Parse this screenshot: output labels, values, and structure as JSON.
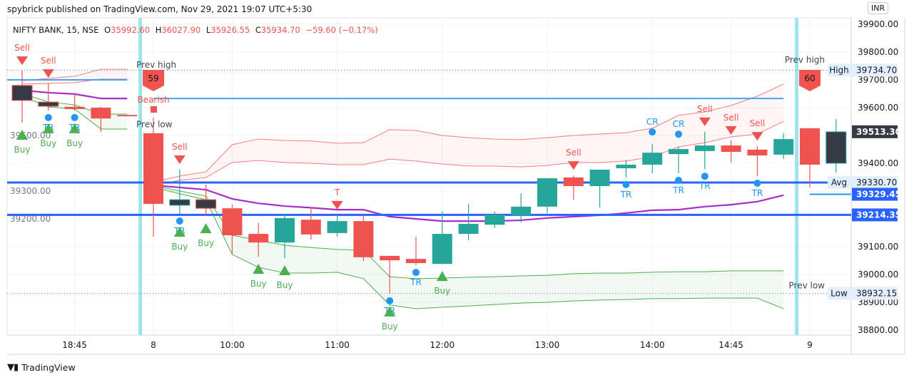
{
  "published": "spybrick published on TradingView.com, Nov 29, 2021 19:07 UTC+5:30",
  "legend": {
    "symbol": "NIFTY BANK, 15, NSE",
    "o_label": "O",
    "o": "35992.60",
    "h_label": "H",
    "h": "36027.90",
    "l_label": "L",
    "l": "35926.55",
    "c_label": "C",
    "c": "35934.70",
    "change": "−59.60 (−0.17%)"
  },
  "currency": "INR",
  "footer": {
    "brand": "TradingView",
    "logo_icon": "tradingview-logo-icon"
  },
  "colors": {
    "up": "#26a69a",
    "down": "#ef5350",
    "highlight": "#363a45",
    "upper_band": "#f77c80",
    "lower_band": "#4caf50",
    "ma": "#a52ec9",
    "level": "#2962ff",
    "session": "#9ee3ee",
    "marker_tr": "#2196f3"
  },
  "chart_data": {
    "type": "candlestick",
    "title": "",
    "ylim": [
      38760,
      39900
    ],
    "grid": true,
    "y_ticks": [
      "39900.00",
      "39800.00",
      "39700.00",
      "39600.00",
      "39500.00",
      "39400.00",
      "39300.00",
      "39200.00",
      "39100.00",
      "39000.00",
      "38900.00",
      "38800.00"
    ],
    "x_ticks": [
      {
        "i": 2,
        "label": "18:45"
      },
      {
        "i": 5,
        "label": "8"
      },
      {
        "i": 8,
        "label": "10:00"
      },
      {
        "i": 12,
        "label": "11:00"
      },
      {
        "i": 16,
        "label": "12:00"
      },
      {
        "i": 20,
        "label": "13:00"
      },
      {
        "i": 24,
        "label": "14:00"
      },
      {
        "i": 27,
        "label": "14:45"
      },
      {
        "i": 30,
        "label": "9"
      }
    ],
    "session_breaks": [
      4.5,
      29.5
    ],
    "candles": [
      {
        "o": 39680,
        "h": 39733,
        "l": 39546,
        "c": 39626,
        "style": "highlight",
        "dir": "down"
      },
      {
        "o": 39620,
        "h": 39687,
        "l": 39590,
        "c": 39605,
        "style": "highlight",
        "dir": "down"
      },
      {
        "o": 39603,
        "h": 39646,
        "l": 39590,
        "c": 39595,
        "style": "down"
      },
      {
        "o": 39600,
        "h": 39603,
        "l": 39513,
        "c": 39561,
        "style": "down"
      },
      {
        "o": 39574,
        "h": 39574,
        "l": 39569,
        "c": 39569,
        "style": "down"
      },
      {
        "o": 39508,
        "h": 39564,
        "l": 39136,
        "c": 39254,
        "style": "down"
      },
      {
        "o": 39249,
        "h": 39377,
        "l": 39218,
        "c": 39269,
        "style": "highlight",
        "dir": "up"
      },
      {
        "o": 39269,
        "h": 39323,
        "l": 39210,
        "c": 39238,
        "style": "highlight",
        "dir": "down"
      },
      {
        "o": 39238,
        "h": 39251,
        "l": 39072,
        "c": 39141,
        "style": "down"
      },
      {
        "o": 39146,
        "h": 39185,
        "l": 39064,
        "c": 39115,
        "style": "down"
      },
      {
        "o": 39115,
        "h": 39218,
        "l": 39059,
        "c": 39203,
        "style": "up"
      },
      {
        "o": 39197,
        "h": 39241,
        "l": 39126,
        "c": 39144,
        "style": "down"
      },
      {
        "o": 39149,
        "h": 39213,
        "l": 39136,
        "c": 39192,
        "style": "up"
      },
      {
        "o": 39192,
        "h": 39213,
        "l": 39049,
        "c": 39062,
        "style": "down"
      },
      {
        "o": 39067,
        "h": 39067,
        "l": 38931,
        "c": 39051,
        "style": "down"
      },
      {
        "o": 39056,
        "h": 39136,
        "l": 39033,
        "c": 39041,
        "style": "down"
      },
      {
        "o": 39038,
        "h": 39226,
        "l": 39038,
        "c": 39146,
        "style": "up"
      },
      {
        "o": 39146,
        "h": 39254,
        "l": 39123,
        "c": 39182,
        "style": "up"
      },
      {
        "o": 39179,
        "h": 39226,
        "l": 39167,
        "c": 39215,
        "style": "up"
      },
      {
        "o": 39213,
        "h": 39292,
        "l": 39187,
        "c": 39244,
        "style": "up"
      },
      {
        "o": 39244,
        "h": 39346,
        "l": 39221,
        "c": 39346,
        "style": "up"
      },
      {
        "o": 39349,
        "h": 39356,
        "l": 39269,
        "c": 39318,
        "style": "down"
      },
      {
        "o": 39318,
        "h": 39377,
        "l": 39241,
        "c": 39377,
        "style": "up"
      },
      {
        "o": 39382,
        "h": 39413,
        "l": 39349,
        "c": 39395,
        "style": "up"
      },
      {
        "o": 39395,
        "h": 39469,
        "l": 39364,
        "c": 39438,
        "style": "up"
      },
      {
        "o": 39433,
        "h": 39461,
        "l": 39364,
        "c": 39451,
        "style": "up"
      },
      {
        "o": 39444,
        "h": 39513,
        "l": 39379,
        "c": 39464,
        "style": "up"
      },
      {
        "o": 39464,
        "h": 39482,
        "l": 39403,
        "c": 39441,
        "style": "down"
      },
      {
        "o": 39449,
        "h": 39461,
        "l": 39354,
        "c": 39428,
        "style": "down"
      },
      {
        "o": 39431,
        "h": 39508,
        "l": 39415,
        "c": 39487,
        "style": "up"
      },
      {
        "o": 39526,
        "h": 39526,
        "l": 39313,
        "c": 39395,
        "style": "down"
      },
      {
        "o": 39400,
        "h": 39559,
        "l": 39367,
        "c": 39513,
        "style": "highlight",
        "dir": "up"
      }
    ],
    "bands": {
      "upper_outer": [
        39697,
        39705,
        39713,
        39738,
        39738,
        39333,
        39354,
        39369,
        39467,
        39487,
        39482,
        39480,
        39472,
        39474,
        39521,
        39518,
        39500,
        39492,
        39487,
        39485,
        39492,
        39500,
        39505,
        39510,
        39526,
        39572,
        39585,
        39608,
        39641,
        39685,
        null,
        null
      ],
      "upper_inner": [
        39685,
        39687,
        39690,
        39703,
        39703,
        39321,
        39338,
        39349,
        39403,
        39410,
        39403,
        39400,
        39395,
        39395,
        39415,
        39408,
        39397,
        39390,
        39390,
        39387,
        39392,
        39403,
        39403,
        39408,
        39423,
        39459,
        39474,
        39495,
        39505,
        39551,
        null,
        null
      ],
      "lower_inner": [
        39651,
        39621,
        39610,
        39577,
        39577,
        39321,
        39300,
        39282,
        39141,
        39123,
        39105,
        39097,
        39090,
        39087,
        38992,
        38985,
        38987,
        38990,
        38992,
        38995,
        38997,
        39003,
        39005,
        39005,
        39008,
        39010,
        39010,
        39013,
        39013,
        39013,
        null,
        null
      ],
      "lower_outer": [
        39641,
        39603,
        39595,
        39523,
        39523,
        39315,
        39290,
        39269,
        39072,
        39026,
        39005,
        39005,
        39008,
        38985,
        38890,
        38877,
        38882,
        38887,
        38892,
        38897,
        38900,
        38905,
        38908,
        38910,
        38913,
        38913,
        38915,
        38915,
        38915,
        38877,
        null,
        null
      ],
      "ma": [
        39662,
        39654,
        39649,
        39633,
        39633,
        39321,
        39313,
        39305,
        39272,
        39256,
        39246,
        39240,
        39233,
        39233,
        39208,
        39200,
        39192,
        39192,
        39192,
        39195,
        39203,
        39208,
        39213,
        39221,
        39231,
        39233,
        39244,
        39251,
        39262,
        39285,
        null,
        null
      ]
    },
    "levels": [
      {
        "name": "avg",
        "price": 39330.7,
        "label": "Avg",
        "value": "39330.70",
        "style": "thick"
      },
      {
        "name": "level",
        "price": 39214.35,
        "label": "",
        "value": "39214.35",
        "style": "thick"
      },
      {
        "name": "last-level",
        "price": 39329.45,
        "label": "",
        "value": "39329.45",
        "style": "short"
      },
      {
        "name": "high",
        "price": 39734.7,
        "label": "High",
        "value": "39734.70",
        "style": "dotted"
      },
      {
        "name": "low",
        "price": 38932.15,
        "label": "Low",
        "value": "38932.15",
        "style": "dotted"
      }
    ],
    "prev_close_line": 39633,
    "last_price": "39513.30",
    "annotations": [
      {
        "i": 5,
        "text": "Prev high",
        "price": 39738
      },
      {
        "i": 5,
        "text": "Prev  low",
        "price": 39525
      },
      {
        "i": 30,
        "text": "Prev high",
        "price": 39700
      },
      {
        "i": 30,
        "text": "Prev  low",
        "price": 38945
      }
    ],
    "badges": [
      {
        "i": 5,
        "text": "59",
        "sub": "Bearish"
      },
      {
        "i": 30,
        "text": "60",
        "sub": ""
      }
    ],
    "markers": [
      {
        "i": 0,
        "type": "sell",
        "label": "Sell"
      },
      {
        "i": 0,
        "type": "buy",
        "label": "Buy"
      },
      {
        "i": 1,
        "type": "sell",
        "label": "Sell"
      },
      {
        "i": 1,
        "type": "tr",
        "label": "TR"
      },
      {
        "i": 1,
        "type": "buy",
        "label": "Buy"
      },
      {
        "i": 2,
        "type": "tr",
        "label": "TR"
      },
      {
        "i": 2,
        "type": "buy",
        "label": "Buy"
      },
      {
        "i": 6,
        "type": "sell",
        "label": "Sell"
      },
      {
        "i": 6,
        "type": "tr",
        "label": "TR"
      },
      {
        "i": 6,
        "type": "buy",
        "label": "Buy"
      },
      {
        "i": 7,
        "type": "buy",
        "label": "Buy"
      },
      {
        "i": 9,
        "type": "buy",
        "label": "Buy"
      },
      {
        "i": 10,
        "type": "buy",
        "label": "Buy"
      },
      {
        "i": 12,
        "type": "sell",
        "label": "T"
      },
      {
        "i": 14,
        "type": "tr",
        "label": "TR"
      },
      {
        "i": 14,
        "type": "buy",
        "label": "Buy"
      },
      {
        "i": 15,
        "type": "tr",
        "label": "TR"
      },
      {
        "i": 16,
        "type": "buy",
        "label": "Buy"
      },
      {
        "i": 21,
        "type": "sell",
        "label": "Sell"
      },
      {
        "i": 23,
        "type": "tr",
        "label": "TR"
      },
      {
        "i": 24,
        "type": "cr",
        "label": "CR"
      },
      {
        "i": 25,
        "type": "cr",
        "label": "CR"
      },
      {
        "i": 25,
        "type": "tr",
        "label": "TR"
      },
      {
        "i": 26,
        "type": "sell",
        "label": "Sell"
      },
      {
        "i": 26,
        "type": "tr",
        "label": "TR"
      },
      {
        "i": 27,
        "type": "sell",
        "label": "Sell"
      },
      {
        "i": 28,
        "type": "sell",
        "label": "Sell"
      },
      {
        "i": 28,
        "type": "tr",
        "label": "TR"
      }
    ]
  }
}
